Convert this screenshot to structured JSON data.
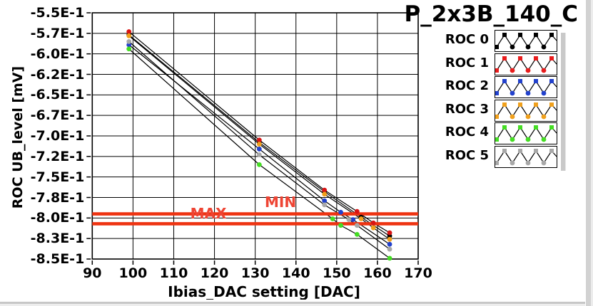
{
  "title": "P_2x3B_140_C",
  "chart_data": {
    "type": "line",
    "title": "P_2x3B_140_C",
    "xlabel": "Ibias_DAC setting [DAC]",
    "ylabel": "ROC UB_level [mV]",
    "xlim": [
      90,
      170
    ],
    "ylim": [
      -0.85,
      -0.55
    ],
    "grid": true,
    "x_ticks": [
      {
        "value": 90,
        "label": "90"
      },
      {
        "value": 100,
        "label": "100"
      },
      {
        "value": 110,
        "label": "110"
      },
      {
        "value": 120,
        "label": "120"
      },
      {
        "value": 130,
        "label": "130"
      },
      {
        "value": 140,
        "label": "140"
      },
      {
        "value": 150,
        "label": "150"
      },
      {
        "value": 160,
        "label": "160"
      },
      {
        "value": 170,
        "label": "170"
      }
    ],
    "y_ticks": [
      {
        "value": -0.55,
        "label": "-5.5E-1"
      },
      {
        "value": -0.575,
        "label": "-5.7E-1"
      },
      {
        "value": -0.6,
        "label": "-6.0E-1"
      },
      {
        "value": -0.625,
        "label": "-6.2E-1"
      },
      {
        "value": -0.65,
        "label": "-6.5E-1"
      },
      {
        "value": -0.675,
        "label": "-6.7E-1"
      },
      {
        "value": -0.7,
        "label": "-7.0E-1"
      },
      {
        "value": -0.725,
        "label": "-7.2E-1"
      },
      {
        "value": -0.75,
        "label": "-7.5E-1"
      },
      {
        "value": -0.775,
        "label": "-7.8E-1"
      },
      {
        "value": -0.8,
        "label": "-8.0E-1"
      },
      {
        "value": -0.825,
        "label": "-8.3E-1"
      },
      {
        "value": -0.85,
        "label": "-8.5E-1"
      }
    ],
    "line_color": "#000000",
    "series": [
      {
        "name": "ROC 0",
        "marker_color": "#000000",
        "points": [
          [
            99,
            -0.577
          ],
          [
            131,
            -0.708
          ],
          [
            147,
            -0.768
          ],
          [
            156,
            -0.799
          ],
          [
            163,
            -0.822
          ]
        ]
      },
      {
        "name": "ROC 1",
        "marker_color": "#d81414",
        "points": [
          [
            99,
            -0.573
          ],
          [
            131,
            -0.705
          ],
          [
            147,
            -0.766
          ],
          [
            155,
            -0.792
          ],
          [
            159,
            -0.806
          ],
          [
            163,
            -0.818
          ]
        ]
      },
      {
        "name": "ROC 2",
        "marker_color": "#2241cc",
        "points": [
          [
            99,
            -0.589
          ],
          [
            131,
            -0.716
          ],
          [
            147,
            -0.779
          ],
          [
            151,
            -0.793
          ],
          [
            154,
            -0.802
          ],
          [
            163,
            -0.832
          ]
        ]
      },
      {
        "name": "ROC 3",
        "marker_color": "#f0a01c",
        "points": [
          [
            99,
            -0.578
          ],
          [
            131,
            -0.71
          ],
          [
            147,
            -0.771
          ],
          [
            156,
            -0.801
          ],
          [
            159,
            -0.812
          ],
          [
            163,
            -0.826
          ]
        ]
      },
      {
        "name": "ROC 4",
        "marker_color": "#44dd22",
        "points": [
          [
            99,
            -0.594
          ],
          [
            131,
            -0.735
          ],
          [
            149,
            -0.801
          ],
          [
            151,
            -0.809
          ],
          [
            155,
            -0.82
          ],
          [
            163,
            -0.849
          ]
        ]
      },
      {
        "name": "ROC 5",
        "marker_color": "#a8a8a8",
        "points": [
          [
            99,
            -0.585
          ],
          [
            131,
            -0.723
          ],
          [
            147,
            -0.784
          ],
          [
            153,
            -0.802
          ],
          [
            155,
            -0.809
          ],
          [
            163,
            -0.838
          ]
        ]
      }
    ],
    "reference_lines": [
      {
        "name": "MAX",
        "value": -0.795,
        "color": "#ee3311"
      },
      {
        "name": "MIN",
        "value": -0.807,
        "color": "#ee3311"
      }
    ],
    "annotations": [
      {
        "text": "MAX",
        "x": 118.5,
        "y": -0.7946,
        "color": "#ee4433"
      },
      {
        "text": "MIN",
        "x": 136.2,
        "y": -0.781,
        "color": "#ee4433"
      }
    ],
    "legend_position": "right"
  },
  "legend": {
    "items": [
      {
        "label": "ROC 0",
        "color": "#000000"
      },
      {
        "label": "ROC 1",
        "color": "#e81c1c"
      },
      {
        "label": "ROC 2",
        "color": "#2241cc"
      },
      {
        "label": "ROC 3",
        "color": "#f0a01c"
      },
      {
        "label": "ROC 4",
        "color": "#44dd22"
      },
      {
        "label": "ROC 5",
        "color": "#a8a8a8"
      }
    ]
  }
}
